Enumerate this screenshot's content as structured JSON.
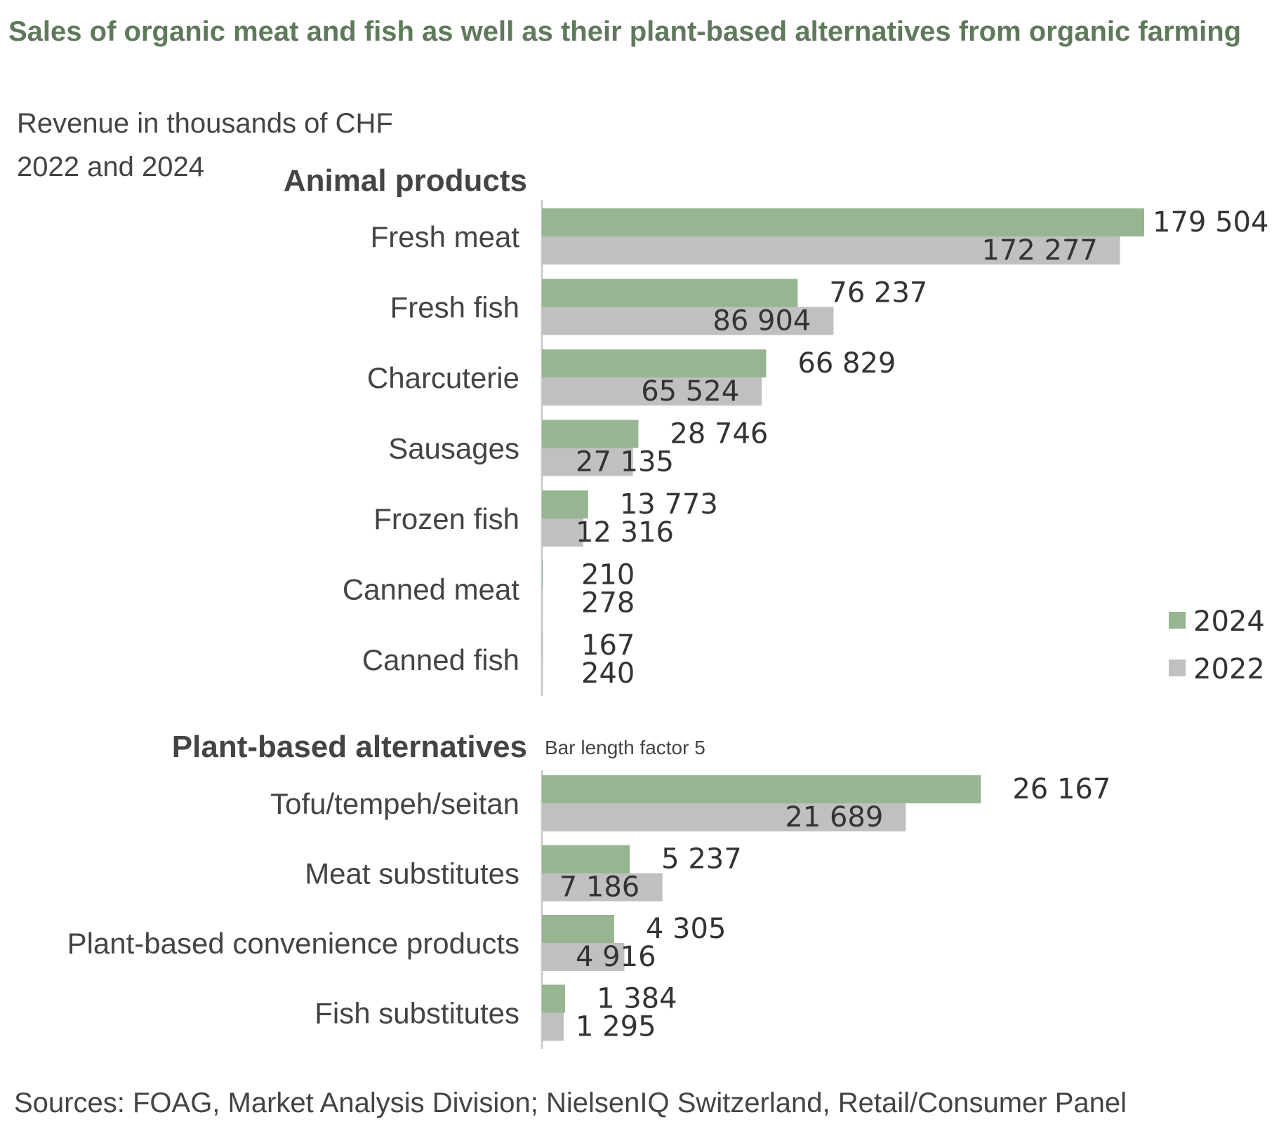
{
  "title": "Sales of organic meat and fish as well as their plant-based alternatives from organic farming",
  "subtitle": [
    "Revenue in thousands of CHF",
    "2022 and 2024"
  ],
  "source": "Sources: FOAG, Market Analysis Division; NielsenIQ Switzerland, Retail/Consumer Panel",
  "colors": {
    "2024": "#97b591",
    "2022": "#c0c0c0",
    "axis": "#cccccc"
  },
  "chart_data": [
    {
      "type": "bar",
      "orientation": "horizontal",
      "title": "Animal products",
      "categories": [
        "Fresh meat",
        "Fresh fish",
        "Charcuterie",
        "Sausages",
        "Frozen fish",
        "Canned meat",
        "Canned fish"
      ],
      "series": [
        {
          "name": "2024",
          "values": [
            179504,
            76237,
            66829,
            28746,
            13773,
            210,
            167
          ],
          "labels": [
            "179 504",
            "76 237",
            "66 829",
            "28 746",
            "13 773",
            "210",
            "167"
          ]
        },
        {
          "name": "2022",
          "values": [
            172277,
            86904,
            65524,
            27135,
            12316,
            278,
            240
          ],
          "labels": [
            "172 277",
            "86 904",
            "65 524",
            "27 135",
            "12 316",
            "278",
            "240"
          ]
        }
      ],
      "legend": "right"
    },
    {
      "type": "bar",
      "orientation": "horizontal",
      "title": "Plant-based alternatives",
      "note": "Bar length factor 5",
      "bar_length_factor": 5,
      "categories": [
        "Tofu/tempeh/seitan",
        "Meat substitutes",
        "Plant-based convenience products",
        "Fish substitutes"
      ],
      "series": [
        {
          "name": "2024",
          "values": [
            26167,
            5237,
            4305,
            1384
          ],
          "labels": [
            "26 167",
            "5 237",
            "4 305",
            "1 384"
          ]
        },
        {
          "name": "2022",
          "values": [
            21689,
            7186,
            4916,
            1295
          ],
          "labels": [
            "21 689",
            "7 186",
            "4 916",
            "1 295"
          ]
        }
      ]
    }
  ]
}
